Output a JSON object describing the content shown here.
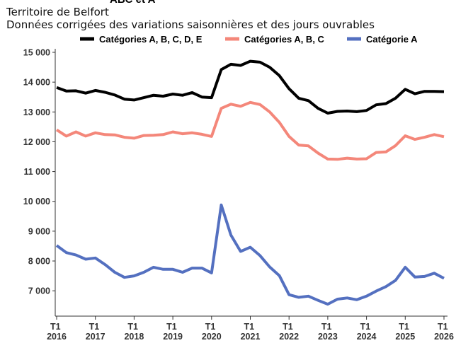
{
  "chart_data": {
    "type": "line",
    "title": "ABC et A",
    "subtitle": [
      "Territoire de Belfort",
      "Données corrigées des variations saisonnières et des jours ouvrables"
    ],
    "x": [
      2016,
      2016.25,
      2016.5,
      2016.75,
      2017,
      2017.25,
      2017.5,
      2017.75,
      2018,
      2018.25,
      2018.5,
      2018.75,
      2019,
      2019.25,
      2019.5,
      2019.75,
      2020,
      2020.25,
      2020.5,
      2020.75,
      2021,
      2021.25,
      2021.5,
      2021.75,
      2022,
      2022.25,
      2022.5,
      2022.75,
      2023,
      2023.25,
      2023.5,
      2023.75,
      2024,
      2024.25,
      2024.5,
      2024.75,
      2025,
      2025.25,
      2025.5,
      2025.75,
      2026
    ],
    "series": [
      {
        "name": "Catégories A, B, C, D, E",
        "color": "#000000",
        "values": [
          13820,
          13700,
          13710,
          13630,
          13720,
          13660,
          13570,
          13430,
          13400,
          13480,
          13560,
          13530,
          13600,
          13560,
          13650,
          13500,
          13480,
          14420,
          14600,
          14560,
          14700,
          14670,
          14500,
          14220,
          13780,
          13460,
          13380,
          13120,
          12960,
          13020,
          13030,
          13010,
          13050,
          13240,
          13280,
          13460,
          13760,
          13610,
          13690,
          13690,
          13680
        ]
      },
      {
        "name": "Catégories A, B, C",
        "color": "#f4877a",
        "values": [
          12400,
          12190,
          12330,
          12190,
          12300,
          12240,
          12230,
          12150,
          12120,
          12210,
          12220,
          12240,
          12330,
          12270,
          12300,
          12250,
          12180,
          13120,
          13260,
          13190,
          13320,
          13250,
          13000,
          12650,
          12180,
          11890,
          11860,
          11620,
          11420,
          11410,
          11450,
          11420,
          11430,
          11640,
          11660,
          11870,
          12200,
          12080,
          12150,
          12240,
          12170
        ]
      },
      {
        "name": "Catégorie A",
        "color": "#5470c0",
        "values": [
          8520,
          8280,
          8200,
          8060,
          8100,
          7880,
          7620,
          7450,
          7500,
          7620,
          7790,
          7720,
          7720,
          7620,
          7760,
          7760,
          7600,
          9880,
          8870,
          8320,
          8460,
          8180,
          7800,
          7510,
          6870,
          6780,
          6820,
          6680,
          6550,
          6720,
          6760,
          6700,
          6820,
          6990,
          7140,
          7350,
          7790,
          7460,
          7480,
          7590,
          7420
        ]
      }
    ],
    "xlim": [
      2016,
      2026
    ],
    "xticks": [
      {
        "value": 2016,
        "label": "T1 2016"
      },
      {
        "value": 2017,
        "label": "T1 2017"
      },
      {
        "value": 2018,
        "label": "T1 2018"
      },
      {
        "value": 2019,
        "label": "T1 2019"
      },
      {
        "value": 2020,
        "label": "T1 2020"
      },
      {
        "value": 2021,
        "label": "T1 2021"
      },
      {
        "value": 2022,
        "label": "T1 2022"
      },
      {
        "value": 2023,
        "label": "T1 2023"
      },
      {
        "value": 2024,
        "label": "T1 2024"
      },
      {
        "value": 2025,
        "label": "T1 2025"
      },
      {
        "value": 2026,
        "label": "T1 2026"
      }
    ],
    "ylim": [
      6150,
      15000
    ],
    "yticks": [
      {
        "value": 7000,
        "label": "7 000"
      },
      {
        "value": 8000,
        "label": "8 000"
      },
      {
        "value": 9000,
        "label": "9 000"
      },
      {
        "value": 10000,
        "label": "10 000"
      },
      {
        "value": 11000,
        "label": "11 000"
      },
      {
        "value": 12000,
        "label": "12 000"
      },
      {
        "value": 13000,
        "label": "13 000"
      },
      {
        "value": 14000,
        "label": "14 000"
      },
      {
        "value": 15000,
        "label": "15 000"
      }
    ],
    "legend": "top"
  }
}
